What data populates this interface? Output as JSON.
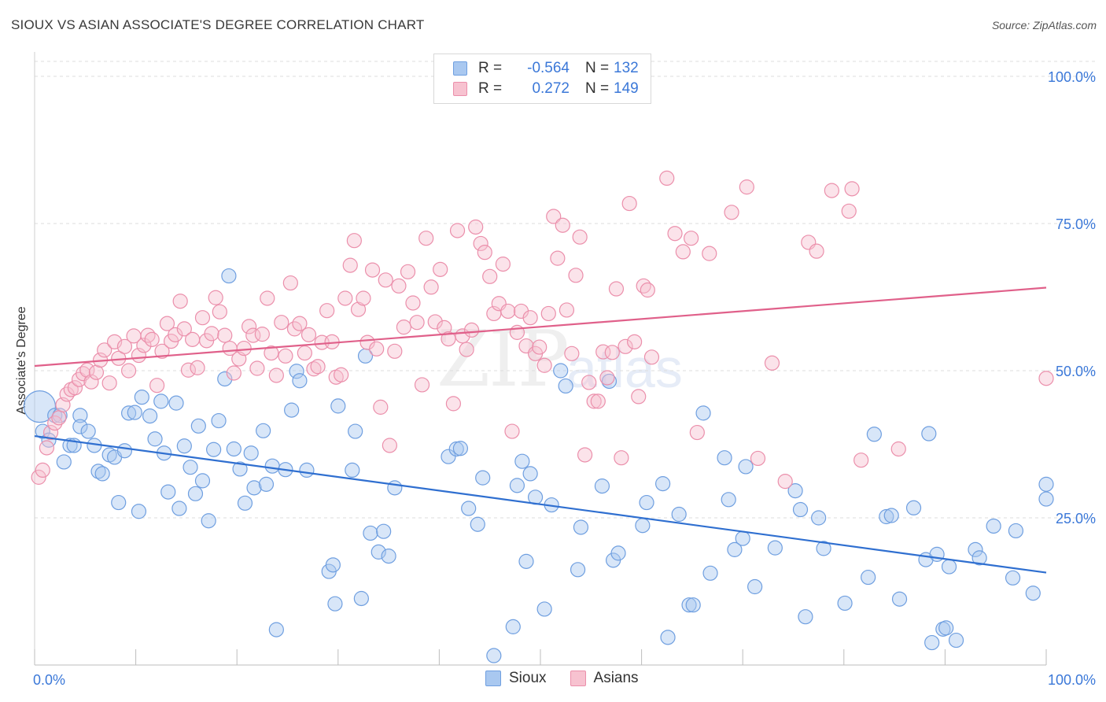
{
  "title": "SIOUX VS ASIAN ASSOCIATE'S DEGREE CORRELATION CHART",
  "source": "Source: ZipAtlas.com",
  "watermark_zip": "ZIP",
  "watermark_atlas": "atlas",
  "legend": {
    "rows": [
      {
        "r_label": "R =",
        "r_value": "-0.564",
        "n_label": "N =",
        "n_value": "132"
      },
      {
        "r_label": "R =",
        "r_value": "0.272",
        "n_label": "N =",
        "n_value": "149"
      }
    ]
  },
  "bottom_legend": {
    "sioux": "Sioux",
    "asians": "Asians"
  },
  "colors": {
    "sioux_fill": "#a9c8f0",
    "sioux_stroke": "#6f9fe0",
    "sioux_line": "#2f6fd0",
    "asian_fill": "#f7c2d0",
    "asian_stroke": "#eb8fab",
    "asian_line": "#e0608a",
    "grid": "#dedede",
    "tick_text": "#3b78d8"
  },
  "chart_data": {
    "type": "scatter",
    "ylabel": "Associate's Degree",
    "xlim": [
      0,
      100
    ],
    "ylim": [
      0,
      100
    ],
    "x_tick_labels": [
      "0.0%",
      "100.0%"
    ],
    "y_tick_labels": [
      "100.0%",
      "75.0%",
      "50.0%",
      "25.0%"
    ],
    "y_ticks": [
      100,
      75,
      50,
      25
    ],
    "grid": "horizontal dashed",
    "series": [
      {
        "name": "Sioux",
        "r": -0.564,
        "n": 132,
        "trend": {
          "x": [
            0,
            100
          ],
          "y": [
            38.9,
            15.7
          ]
        },
        "points": [
          [
            0.5,
            43.9
          ],
          [
            0.8,
            39.7
          ],
          [
            1.4,
            38.2
          ],
          [
            2.0,
            42.4
          ],
          [
            2.5,
            42.4
          ],
          [
            2.9,
            34.5
          ],
          [
            3.5,
            37.3
          ],
          [
            3.9,
            37.3
          ],
          [
            4.5,
            42.4
          ],
          [
            4.5,
            40.5
          ],
          [
            5.3,
            39.7
          ],
          [
            5.9,
            37.3
          ],
          [
            6.3,
            32.9
          ],
          [
            6.7,
            32.5
          ],
          [
            7.4,
            35.7
          ],
          [
            7.9,
            35.3
          ],
          [
            8.3,
            27.6
          ],
          [
            8.9,
            36.4
          ],
          [
            9.3,
            42.8
          ],
          [
            9.9,
            42.9
          ],
          [
            10.3,
            26.1
          ],
          [
            10.6,
            45.5
          ],
          [
            11.4,
            42.3
          ],
          [
            11.9,
            38.4
          ],
          [
            12.5,
            44.8
          ],
          [
            12.8,
            36.0
          ],
          [
            13.2,
            29.4
          ],
          [
            14.0,
            44.5
          ],
          [
            14.3,
            26.6
          ],
          [
            14.8,
            37.2
          ],
          [
            15.4,
            33.6
          ],
          [
            15.9,
            29.1
          ],
          [
            16.2,
            40.6
          ],
          [
            16.6,
            31.3
          ],
          [
            17.2,
            24.5
          ],
          [
            17.7,
            36.6
          ],
          [
            18.2,
            41.5
          ],
          [
            18.8,
            48.6
          ],
          [
            19.2,
            66.1
          ],
          [
            19.7,
            36.7
          ],
          [
            20.3,
            33.3
          ],
          [
            20.8,
            27.5
          ],
          [
            21.4,
            36.0
          ],
          [
            21.7,
            30.1
          ],
          [
            22.6,
            39.8
          ],
          [
            22.9,
            30.7
          ],
          [
            23.5,
            33.8
          ],
          [
            23.9,
            6.0
          ],
          [
            24.8,
            33.2
          ],
          [
            25.4,
            43.3
          ],
          [
            25.9,
            49.9
          ],
          [
            26.2,
            48.3
          ],
          [
            26.9,
            33.1
          ],
          [
            29.1,
            15.9
          ],
          [
            29.5,
            17.0
          ],
          [
            29.7,
            10.4
          ],
          [
            30.0,
            44.0
          ],
          [
            31.4,
            33.1
          ],
          [
            31.7,
            39.7
          ],
          [
            32.3,
            11.3
          ],
          [
            32.7,
            52.5
          ],
          [
            33.2,
            22.4
          ],
          [
            34.0,
            19.2
          ],
          [
            34.5,
            22.7
          ],
          [
            35.0,
            18.5
          ],
          [
            35.6,
            30.1
          ],
          [
            40.9,
            35.4
          ],
          [
            41.7,
            36.7
          ],
          [
            42.1,
            36.8
          ],
          [
            42.9,
            26.6
          ],
          [
            43.8,
            23.9
          ],
          [
            44.3,
            31.8
          ],
          [
            45.4,
            1.6
          ],
          [
            47.3,
            6.5
          ],
          [
            47.7,
            30.5
          ],
          [
            48.2,
            34.6
          ],
          [
            48.6,
            17.6
          ],
          [
            49.0,
            32.5
          ],
          [
            49.5,
            28.5
          ],
          [
            50.4,
            9.5
          ],
          [
            51.1,
            27.2
          ],
          [
            52.0,
            50.0
          ],
          [
            52.5,
            47.4
          ],
          [
            53.7,
            16.2
          ],
          [
            54.0,
            23.4
          ],
          [
            56.1,
            30.4
          ],
          [
            56.8,
            48.2
          ],
          [
            57.2,
            17.8
          ],
          [
            57.7,
            19.0
          ],
          [
            60.1,
            23.7
          ],
          [
            60.5,
            27.6
          ],
          [
            62.1,
            30.8
          ],
          [
            62.6,
            4.7
          ],
          [
            63.7,
            25.6
          ],
          [
            64.7,
            10.2
          ],
          [
            65.1,
            10.2
          ],
          [
            66.1,
            42.8
          ],
          [
            66.8,
            15.6
          ],
          [
            68.2,
            35.2
          ],
          [
            68.6,
            28.1
          ],
          [
            69.2,
            19.6
          ],
          [
            70.0,
            21.5
          ],
          [
            70.3,
            33.7
          ],
          [
            71.2,
            13.3
          ],
          [
            73.2,
            19.9
          ],
          [
            75.2,
            29.6
          ],
          [
            75.7,
            26.4
          ],
          [
            76.2,
            8.2
          ],
          [
            77.5,
            25.0
          ],
          [
            78.0,
            19.8
          ],
          [
            80.1,
            10.5
          ],
          [
            82.4,
            14.9
          ],
          [
            83.0,
            39.2
          ],
          [
            84.2,
            25.2
          ],
          [
            84.7,
            25.4
          ],
          [
            85.5,
            11.2
          ],
          [
            86.9,
            26.7
          ],
          [
            88.1,
            17.9
          ],
          [
            88.4,
            39.3
          ],
          [
            88.7,
            3.8
          ],
          [
            89.2,
            18.8
          ],
          [
            89.8,
            6.1
          ],
          [
            90.1,
            6.3
          ],
          [
            90.4,
            16.7
          ],
          [
            91.1,
            4.2
          ],
          [
            93.0,
            19.6
          ],
          [
            93.4,
            18.2
          ],
          [
            94.8,
            23.6
          ],
          [
            96.7,
            14.8
          ],
          [
            97.0,
            22.8
          ],
          [
            98.7,
            12.2
          ],
          [
            100,
            30.7
          ],
          [
            100,
            28.2
          ]
        ]
      },
      {
        "name": "Asians",
        "r": 0.272,
        "n": 149,
        "trend": {
          "x": [
            0,
            100
          ],
          "y": [
            50.8,
            64.1
          ]
        },
        "points": [
          [
            0.4,
            31.9
          ],
          [
            0.8,
            33.1
          ],
          [
            1.2,
            36.9
          ],
          [
            1.6,
            39.5
          ],
          [
            2.0,
            41.1
          ],
          [
            2.4,
            42.0
          ],
          [
            2.8,
            44.2
          ],
          [
            3.2,
            46.0
          ],
          [
            3.6,
            46.8
          ],
          [
            4.0,
            47.1
          ],
          [
            4.4,
            48.5
          ],
          [
            4.8,
            49.5
          ],
          [
            5.2,
            50.1
          ],
          [
            5.6,
            48.1
          ],
          [
            6.1,
            49.7
          ],
          [
            6.5,
            51.8
          ],
          [
            6.9,
            53.5
          ],
          [
            7.4,
            47.9
          ],
          [
            7.9,
            54.9
          ],
          [
            8.3,
            52.1
          ],
          [
            8.9,
            54.1
          ],
          [
            9.3,
            50.0
          ],
          [
            9.8,
            55.9
          ],
          [
            10.3,
            52.6
          ],
          [
            10.8,
            54.3
          ],
          [
            11.2,
            56.0
          ],
          [
            11.6,
            55.3
          ],
          [
            12.1,
            47.5
          ],
          [
            12.6,
            53.3
          ],
          [
            13.1,
            58.0
          ],
          [
            13.5,
            55.0
          ],
          [
            13.9,
            56.1
          ],
          [
            14.4,
            61.8
          ],
          [
            14.8,
            57.1
          ],
          [
            15.2,
            50.1
          ],
          [
            15.6,
            55.3
          ],
          [
            16.1,
            50.5
          ],
          [
            16.6,
            59.0
          ],
          [
            17.0,
            55.1
          ],
          [
            17.5,
            56.3
          ],
          [
            17.9,
            62.4
          ],
          [
            18.3,
            60.0
          ],
          [
            18.8,
            56.0
          ],
          [
            19.3,
            53.8
          ],
          [
            19.7,
            49.6
          ],
          [
            20.2,
            52.0
          ],
          [
            20.7,
            53.8
          ],
          [
            21.2,
            57.5
          ],
          [
            21.6,
            56.0
          ],
          [
            22.0,
            50.4
          ],
          [
            22.5,
            56.2
          ],
          [
            23.0,
            62.3
          ],
          [
            23.4,
            53.0
          ],
          [
            23.9,
            49.2
          ],
          [
            24.4,
            58.2
          ],
          [
            24.8,
            52.5
          ],
          [
            25.3,
            64.9
          ],
          [
            25.7,
            57.1
          ],
          [
            26.2,
            58.0
          ],
          [
            26.7,
            53.0
          ],
          [
            27.1,
            56.1
          ],
          [
            27.6,
            50.3
          ],
          [
            28.0,
            50.7
          ],
          [
            28.4,
            54.8
          ],
          [
            28.9,
            60.2
          ],
          [
            29.4,
            54.9
          ],
          [
            29.8,
            48.9
          ],
          [
            30.3,
            49.3
          ],
          [
            30.7,
            62.3
          ],
          [
            31.2,
            67.9
          ],
          [
            31.6,
            72.1
          ],
          [
            32.0,
            60.4
          ],
          [
            32.5,
            62.3
          ],
          [
            32.9,
            54.8
          ],
          [
            33.4,
            67.1
          ],
          [
            33.8,
            53.7
          ],
          [
            34.2,
            43.8
          ],
          [
            34.7,
            65.4
          ],
          [
            35.1,
            37.3
          ],
          [
            35.6,
            53.3
          ],
          [
            36.0,
            64.4
          ],
          [
            36.5,
            57.4
          ],
          [
            36.9,
            66.8
          ],
          [
            37.4,
            61.5
          ],
          [
            37.8,
            58.2
          ],
          [
            38.3,
            47.6
          ],
          [
            38.7,
            72.5
          ],
          [
            39.2,
            64.2
          ],
          [
            39.6,
            58.3
          ],
          [
            40.1,
            67.2
          ],
          [
            40.5,
            57.3
          ],
          [
            40.9,
            55.4
          ],
          [
            41.4,
            44.4
          ],
          [
            41.8,
            73.8
          ],
          [
            42.3,
            55.9
          ],
          [
            42.7,
            53.6
          ],
          [
            43.2,
            56.9
          ],
          [
            43.6,
            74.4
          ],
          [
            44.1,
            71.6
          ],
          [
            44.5,
            70.1
          ],
          [
            45.0,
            66.0
          ],
          [
            45.4,
            59.7
          ],
          [
            45.9,
            61.4
          ],
          [
            46.3,
            68.1
          ],
          [
            46.8,
            60.1
          ],
          [
            47.2,
            39.7
          ],
          [
            47.7,
            56.5
          ],
          [
            48.1,
            60.1
          ],
          [
            48.6,
            54.2
          ],
          [
            49.0,
            59.0
          ],
          [
            49.5,
            52.9
          ],
          [
            49.9,
            54.0
          ],
          [
            50.4,
            50.9
          ],
          [
            50.8,
            59.7
          ],
          [
            51.3,
            76.2
          ],
          [
            51.7,
            69.1
          ],
          [
            52.2,
            74.7
          ],
          [
            52.6,
            60.3
          ],
          [
            53.1,
            52.9
          ],
          [
            53.5,
            66.2
          ],
          [
            53.9,
            72.7
          ],
          [
            54.4,
            35.7
          ],
          [
            54.8,
            48.0
          ],
          [
            55.3,
            44.8
          ],
          [
            55.7,
            44.8
          ],
          [
            56.2,
            53.2
          ],
          [
            56.6,
            48.8
          ],
          [
            57.1,
            53.1
          ],
          [
            57.5,
            63.9
          ],
          [
            58.0,
            35.2
          ],
          [
            58.4,
            54.1
          ],
          [
            58.8,
            78.4
          ],
          [
            59.3,
            54.9
          ],
          [
            59.7,
            45.6
          ],
          [
            60.2,
            64.4
          ],
          [
            60.6,
            63.7
          ],
          [
            61.0,
            52.3
          ],
          [
            62.5,
            82.7
          ],
          [
            63.3,
            73.3
          ],
          [
            64.1,
            70.2
          ],
          [
            64.9,
            72.5
          ],
          [
            65.5,
            39.5
          ],
          [
            66.7,
            69.9
          ],
          [
            68.9,
            76.9
          ],
          [
            70.4,
            81.2
          ],
          [
            71.5,
            35.1
          ],
          [
            72.9,
            51.3
          ],
          [
            74.2,
            31.2
          ],
          [
            76.5,
            71.8
          ],
          [
            77.3,
            70.3
          ],
          [
            78.8,
            80.6
          ],
          [
            80.5,
            77.1
          ],
          [
            80.8,
            80.9
          ],
          [
            81.7,
            34.8
          ],
          [
            85.4,
            36.7
          ],
          [
            100,
            48.7
          ]
        ]
      }
    ]
  }
}
